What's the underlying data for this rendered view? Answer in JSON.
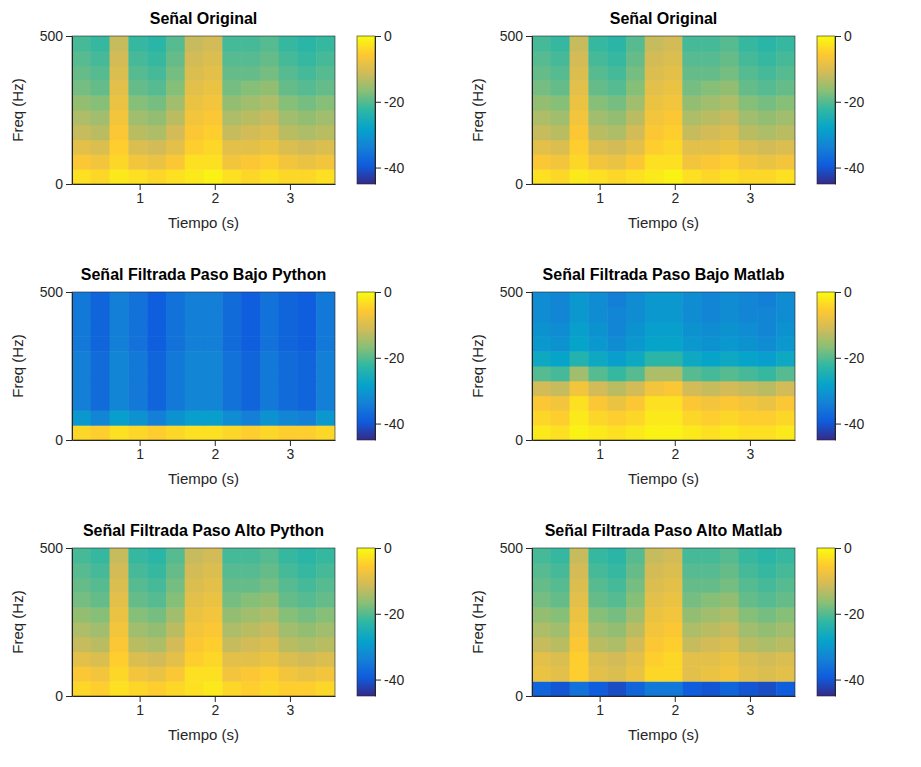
{
  "chart_data": [
    {
      "type": "heatmap",
      "title": "Señal Original",
      "xlabel": "Tiempo (s)",
      "ylabel": "Freq (Hz)",
      "x": [
        0.225,
        0.475,
        0.725,
        0.975,
        1.225,
        1.475,
        1.725,
        1.975,
        2.225,
        2.475,
        2.725,
        2.975,
        3.225,
        3.475
      ],
      "y": [
        25,
        75,
        125,
        175,
        225,
        275,
        325,
        375,
        425,
        475
      ],
      "cells": [
        [
          -3,
          -4,
          -2,
          -3,
          -4,
          -3,
          -2,
          -1,
          -3,
          -4,
          -3,
          -4,
          -4,
          -3
        ],
        [
          -6,
          -7,
          -4,
          -7,
          -8,
          -6,
          -3,
          -3,
          -7,
          -6,
          -5,
          -7,
          -8,
          -7
        ],
        [
          -9,
          -10,
          -5,
          -10,
          -11,
          -9,
          -5,
          -4,
          -9,
          -9,
          -8,
          -10,
          -11,
          -10
        ],
        [
          -12,
          -13,
          -6,
          -13,
          -14,
          -11,
          -6,
          -5,
          -12,
          -11,
          -10,
          -13,
          -14,
          -13
        ],
        [
          -14,
          -15,
          -7,
          -15,
          -16,
          -13,
          -7,
          -6,
          -14,
          -13,
          -12,
          -15,
          -16,
          -15
        ],
        [
          -16,
          -17,
          -8,
          -17,
          -18,
          -15,
          -8,
          -7,
          -16,
          -15,
          -14,
          -17,
          -18,
          -17
        ],
        [
          -18,
          -19,
          -9,
          -19,
          -20,
          -17,
          -9,
          -8,
          -18,
          -17,
          -16,
          -19,
          -20,
          -19
        ],
        [
          -19,
          -20,
          -10,
          -20,
          -21,
          -18,
          -10,
          -9,
          -19,
          -19,
          -18,
          -20,
          -21,
          -20
        ],
        [
          -20,
          -21,
          -11,
          -21,
          -22,
          -19,
          -11,
          -10,
          -20,
          -20,
          -19,
          -21,
          -22,
          -21
        ],
        [
          -21,
          -22,
          -12,
          -22,
          -23,
          -20,
          -12,
          -11,
          -21,
          -21,
          -20,
          -22,
          -23,
          -22
        ]
      ],
      "xlim": [
        0.1,
        3.6
      ],
      "xticks": [
        1,
        2,
        3
      ],
      "ylim": [
        0,
        500
      ],
      "yticks": [
        0,
        500
      ],
      "clim": [
        -45,
        0
      ],
      "cticks": [
        -40,
        -20,
        0
      ]
    },
    {
      "type": "heatmap",
      "title": "Señal Original",
      "xlabel": "Tiempo (s)",
      "ylabel": "Freq (Hz)",
      "x": [
        0.225,
        0.475,
        0.725,
        0.975,
        1.225,
        1.475,
        1.725,
        1.975,
        2.225,
        2.475,
        2.725,
        2.975,
        3.225,
        3.475
      ],
      "y": [
        25,
        75,
        125,
        175,
        225,
        275,
        325,
        375,
        425,
        475
      ],
      "cells": [
        [
          -3,
          -4,
          -2,
          -3,
          -4,
          -3,
          -2,
          -1,
          -3,
          -4,
          -3,
          -4,
          -4,
          -3
        ],
        [
          -6,
          -7,
          -4,
          -7,
          -8,
          -6,
          -3,
          -3,
          -7,
          -6,
          -5,
          -7,
          -8,
          -7
        ],
        [
          -9,
          -10,
          -5,
          -10,
          -11,
          -9,
          -5,
          -4,
          -9,
          -9,
          -8,
          -10,
          -11,
          -10
        ],
        [
          -12,
          -13,
          -6,
          -13,
          -14,
          -11,
          -6,
          -5,
          -12,
          -11,
          -10,
          -13,
          -14,
          -13
        ],
        [
          -14,
          -15,
          -7,
          -15,
          -16,
          -13,
          -7,
          -6,
          -14,
          -13,
          -12,
          -15,
          -16,
          -15
        ],
        [
          -16,
          -17,
          -8,
          -17,
          -18,
          -15,
          -8,
          -7,
          -16,
          -15,
          -14,
          -17,
          -18,
          -17
        ],
        [
          -18,
          -19,
          -9,
          -19,
          -20,
          -17,
          -9,
          -8,
          -18,
          -17,
          -16,
          -19,
          -20,
          -19
        ],
        [
          -19,
          -20,
          -10,
          -20,
          -21,
          -18,
          -10,
          -9,
          -19,
          -19,
          -18,
          -20,
          -21,
          -20
        ],
        [
          -20,
          -21,
          -11,
          -21,
          -22,
          -19,
          -11,
          -10,
          -20,
          -20,
          -19,
          -21,
          -22,
          -21
        ],
        [
          -21,
          -22,
          -12,
          -22,
          -23,
          -20,
          -12,
          -11,
          -21,
          -21,
          -20,
          -22,
          -23,
          -22
        ]
      ],
      "xlim": [
        0.1,
        3.6
      ],
      "xticks": [
        1,
        2,
        3
      ],
      "ylim": [
        0,
        500
      ],
      "yticks": [
        0,
        500
      ],
      "clim": [
        -45,
        0
      ],
      "cticks": [
        -40,
        -20,
        0
      ]
    },
    {
      "type": "heatmap",
      "title": "Señal Filtrada Paso Bajo Python",
      "xlabel": "Tiempo (s)",
      "ylabel": "Freq (Hz)",
      "x": [
        0.225,
        0.475,
        0.725,
        0.975,
        1.225,
        1.475,
        1.725,
        1.975,
        2.225,
        2.475,
        2.725,
        2.975,
        3.225,
        3.475
      ],
      "y": [
        25,
        75,
        125,
        175,
        225,
        275,
        325,
        375,
        425,
        475
      ],
      "cells": [
        [
          -4,
          -5,
          -3,
          -4,
          -5,
          -4,
          -3,
          -3,
          -4,
          -5,
          -4,
          -5,
          -5,
          -4
        ],
        [
          -30,
          -33,
          -29,
          -31,
          -34,
          -31,
          -29,
          -29,
          -32,
          -34,
          -31,
          -33,
          -34,
          -30
        ],
        [
          -34,
          -37,
          -33,
          -35,
          -38,
          -35,
          -33,
          -33,
          -36,
          -38,
          -35,
          -37,
          -38,
          -34
        ],
        [
          -34,
          -37,
          -33,
          -35,
          -38,
          -35,
          -33,
          -33,
          -36,
          -38,
          -35,
          -37,
          -38,
          -34
        ],
        [
          -34,
          -37,
          -33,
          -35,
          -38,
          -35,
          -33,
          -33,
          -36,
          -38,
          -35,
          -37,
          -38,
          -34
        ],
        [
          -34,
          -37,
          -33,
          -35,
          -38,
          -35,
          -33,
          -33,
          -36,
          -38,
          -35,
          -37,
          -38,
          -34
        ],
        [
          -35,
          -38,
          -34,
          -36,
          -39,
          -36,
          -34,
          -34,
          -37,
          -39,
          -36,
          -38,
          -39,
          -35
        ],
        [
          -35,
          -38,
          -34,
          -36,
          -39,
          -36,
          -34,
          -34,
          -37,
          -39,
          -36,
          -38,
          -39,
          -35
        ],
        [
          -35,
          -38,
          -34,
          -36,
          -39,
          -36,
          -34,
          -34,
          -37,
          -39,
          -36,
          -38,
          -39,
          -35
        ],
        [
          -35,
          -38,
          -34,
          -36,
          -39,
          -36,
          -34,
          -34,
          -37,
          -39,
          -36,
          -38,
          -39,
          -35
        ]
      ],
      "xlim": [
        0.1,
        3.6
      ],
      "xticks": [
        1,
        2,
        3
      ],
      "ylim": [
        0,
        500
      ],
      "yticks": [
        0,
        500
      ],
      "clim": [
        -45,
        0
      ],
      "cticks": [
        -40,
        -20,
        0
      ]
    },
    {
      "type": "heatmap",
      "title": "Señal Filtrada Paso Bajo Matlab",
      "xlabel": "Tiempo (s)",
      "ylabel": "Freq (Hz)",
      "x": [
        0.225,
        0.475,
        0.725,
        0.975,
        1.225,
        1.475,
        1.725,
        1.975,
        2.225,
        2.475,
        2.725,
        2.975,
        3.225,
        3.475
      ],
      "y": [
        25,
        75,
        125,
        175,
        225,
        275,
        325,
        375,
        425,
        475
      ],
      "cells": [
        [
          -2,
          -3,
          -1,
          -2,
          -3,
          -2,
          -1,
          -1,
          -2,
          -3,
          -2,
          -3,
          -3,
          -2
        ],
        [
          -4,
          -5,
          -2,
          -4,
          -5,
          -4,
          -2,
          -2,
          -4,
          -5,
          -4,
          -5,
          -5,
          -4
        ],
        [
          -6,
          -7,
          -3,
          -6,
          -8,
          -6,
          -3,
          -3,
          -6,
          -7,
          -6,
          -7,
          -8,
          -6
        ],
        [
          -11,
          -12,
          -7,
          -11,
          -13,
          -11,
          -7,
          -6,
          -11,
          -12,
          -11,
          -12,
          -13,
          -11
        ],
        [
          -20,
          -21,
          -15,
          -20,
          -22,
          -20,
          -14,
          -14,
          -20,
          -21,
          -20,
          -21,
          -22,
          -20
        ],
        [
          -27,
          -28,
          -24,
          -27,
          -29,
          -27,
          -23,
          -23,
          -27,
          -28,
          -27,
          -28,
          -29,
          -27
        ],
        [
          -30,
          -31,
          -28,
          -30,
          -32,
          -30,
          -28,
          -28,
          -30,
          -31,
          -30,
          -31,
          -32,
          -30
        ],
        [
          -31,
          -32,
          -29,
          -31,
          -33,
          -31,
          -29,
          -29,
          -31,
          -32,
          -31,
          -32,
          -33,
          -31
        ],
        [
          -32,
          -33,
          -30,
          -32,
          -33,
          -32,
          -30,
          -30,
          -32,
          -33,
          -32,
          -33,
          -33,
          -32
        ],
        [
          -32,
          -33,
          -30,
          -32,
          -34,
          -32,
          -30,
          -30,
          -32,
          -33,
          -32,
          -33,
          -34,
          -32
        ]
      ],
      "xlim": [
        0.1,
        3.6
      ],
      "xticks": [
        1,
        2,
        3
      ],
      "ylim": [
        0,
        500
      ],
      "yticks": [
        0,
        500
      ],
      "clim": [
        -45,
        0
      ],
      "cticks": [
        -40,
        -20,
        0
      ]
    },
    {
      "type": "heatmap",
      "title": "Señal Filtrada Paso Alto Python",
      "xlabel": "Tiempo (s)",
      "ylabel": "Freq (Hz)",
      "x": [
        0.225,
        0.475,
        0.725,
        0.975,
        1.225,
        1.475,
        1.725,
        1.975,
        2.225,
        2.475,
        2.725,
        2.975,
        3.225,
        3.475
      ],
      "y": [
        25,
        75,
        125,
        175,
        225,
        275,
        325,
        375,
        425,
        475
      ],
      "cells": [
        [
          -4,
          -5,
          -3,
          -4,
          -5,
          -4,
          -3,
          -2,
          -4,
          -5,
          -4,
          -5,
          -5,
          -4
        ],
        [
          -6,
          -7,
          -4,
          -7,
          -8,
          -6,
          -3,
          -3,
          -7,
          -6,
          -5,
          -7,
          -8,
          -7
        ],
        [
          -9,
          -10,
          -5,
          -10,
          -11,
          -9,
          -5,
          -4,
          -9,
          -9,
          -8,
          -10,
          -11,
          -10
        ],
        [
          -12,
          -13,
          -6,
          -13,
          -14,
          -11,
          -6,
          -5,
          -12,
          -11,
          -10,
          -13,
          -14,
          -13
        ],
        [
          -14,
          -15,
          -7,
          -15,
          -16,
          -13,
          -7,
          -6,
          -14,
          -13,
          -12,
          -15,
          -16,
          -15
        ],
        [
          -16,
          -17,
          -8,
          -17,
          -18,
          -15,
          -8,
          -7,
          -16,
          -15,
          -14,
          -17,
          -18,
          -17
        ],
        [
          -18,
          -19,
          -9,
          -19,
          -20,
          -17,
          -9,
          -8,
          -18,
          -17,
          -16,
          -19,
          -20,
          -19
        ],
        [
          -19,
          -20,
          -10,
          -20,
          -21,
          -18,
          -10,
          -9,
          -19,
          -19,
          -18,
          -20,
          -21,
          -20
        ],
        [
          -20,
          -21,
          -11,
          -21,
          -22,
          -19,
          -11,
          -10,
          -20,
          -20,
          -19,
          -21,
          -22,
          -21
        ],
        [
          -21,
          -22,
          -12,
          -22,
          -23,
          -20,
          -12,
          -11,
          -21,
          -21,
          -20,
          -22,
          -23,
          -22
        ]
      ],
      "xlim": [
        0.1,
        3.6
      ],
      "xticks": [
        1,
        2,
        3
      ],
      "ylim": [
        0,
        500
      ],
      "yticks": [
        0,
        500
      ],
      "clim": [
        -45,
        0
      ],
      "cticks": [
        -40,
        -20,
        0
      ]
    },
    {
      "type": "heatmap",
      "title": "Señal Filtrada Paso Alto Matlab",
      "xlabel": "Tiempo (s)",
      "ylabel": "Freq (Hz)",
      "x": [
        0.225,
        0.475,
        0.725,
        0.975,
        1.225,
        1.475,
        1.725,
        1.975,
        2.225,
        2.475,
        2.725,
        2.975,
        3.225,
        3.475
      ],
      "y": [
        25,
        75,
        125,
        175,
        225,
        275,
        325,
        375,
        425,
        475
      ],
      "cells": [
        [
          -38,
          -40,
          -36,
          -39,
          -41,
          -38,
          -35,
          -35,
          -39,
          -40,
          -38,
          -40,
          -41,
          -39
        ],
        [
          -8,
          -9,
          -5,
          -9,
          -10,
          -8,
          -4,
          -4,
          -9,
          -8,
          -7,
          -9,
          -10,
          -9
        ],
        [
          -9,
          -10,
          -5,
          -10,
          -11,
          -9,
          -5,
          -4,
          -9,
          -9,
          -8,
          -10,
          -11,
          -10
        ],
        [
          -12,
          -13,
          -6,
          -13,
          -14,
          -11,
          -6,
          -5,
          -12,
          -11,
          -10,
          -13,
          -14,
          -13
        ],
        [
          -14,
          -15,
          -7,
          -15,
          -16,
          -13,
          -7,
          -6,
          -14,
          -13,
          -12,
          -15,
          -16,
          -15
        ],
        [
          -16,
          -17,
          -8,
          -17,
          -18,
          -15,
          -8,
          -7,
          -16,
          -15,
          -14,
          -17,
          -18,
          -17
        ],
        [
          -18,
          -19,
          -9,
          -19,
          -20,
          -17,
          -9,
          -8,
          -18,
          -17,
          -16,
          -19,
          -20,
          -19
        ],
        [
          -19,
          -20,
          -10,
          -20,
          -21,
          -18,
          -10,
          -9,
          -19,
          -19,
          -18,
          -20,
          -21,
          -20
        ],
        [
          -20,
          -21,
          -11,
          -21,
          -22,
          -19,
          -11,
          -10,
          -20,
          -20,
          -19,
          -21,
          -22,
          -21
        ],
        [
          -21,
          -22,
          -12,
          -22,
          -23,
          -20,
          -12,
          -11,
          -21,
          -21,
          -20,
          -22,
          -23,
          -22
        ]
      ],
      "xlim": [
        0.1,
        3.6
      ],
      "xticks": [
        1,
        2,
        3
      ],
      "ylim": [
        0,
        500
      ],
      "yticks": [
        0,
        500
      ],
      "clim": [
        -45,
        0
      ],
      "cticks": [
        -40,
        -20,
        0
      ]
    }
  ]
}
